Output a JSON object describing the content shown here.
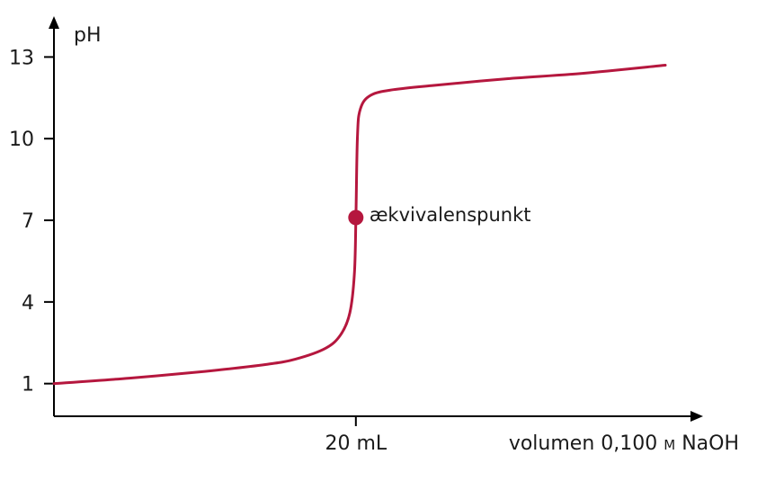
{
  "chart_data": {
    "type": "line",
    "title": "",
    "ylabel": "pH",
    "xlabel": "volumen 0,100",
    "xlabel_unit_symbol": "M",
    "xlabel_suffix": "NaOH",
    "ylim": [
      -0.2,
      14.5
    ],
    "xlim": [
      0,
      43
    ],
    "y_ticks": [
      13,
      10,
      7,
      4,
      1
    ],
    "x_ticks": [
      {
        "value": 20,
        "label": "20 mL"
      }
    ],
    "grid": false,
    "legend": "none",
    "series": [
      {
        "color": "#b5173e",
        "points": [
          [
            0,
            1.0
          ],
          [
            5,
            1.2
          ],
          [
            10,
            1.45
          ],
          [
            14,
            1.7
          ],
          [
            16,
            1.9
          ],
          [
            18,
            2.3
          ],
          [
            19,
            2.8
          ],
          [
            19.6,
            3.6
          ],
          [
            19.9,
            5.0
          ],
          [
            20,
            7.0
          ],
          [
            20.1,
            10.0
          ],
          [
            20.3,
            11.1
          ],
          [
            21,
            11.6
          ],
          [
            22.5,
            11.8
          ],
          [
            25,
            11.95
          ],
          [
            30,
            12.2
          ],
          [
            35,
            12.4
          ],
          [
            40.5,
            12.7
          ]
        ]
      }
    ],
    "annotations": [
      {
        "x": 20,
        "y": 7.1,
        "label": "ækvivalenspunkt",
        "color": "#b5173e"
      }
    ]
  }
}
